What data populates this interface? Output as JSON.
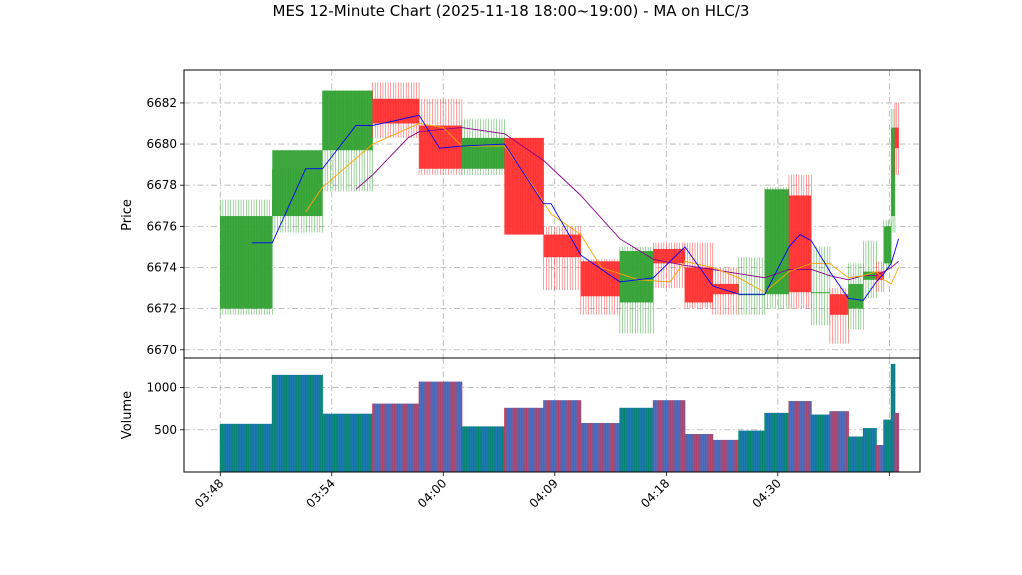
{
  "chart_data": {
    "type": "ohlc_volume",
    "title": "MES 12-Minute Chart (2025-11-18 18:00~19:00) - MA on HLC/3",
    "price_panel": {
      "ylabel": "Price",
      "ylim": [
        6669.6,
        6683.6
      ],
      "yticks": [
        6670,
        6672,
        6674,
        6676,
        6678,
        6680,
        6682
      ],
      "grid": true
    },
    "volume_panel": {
      "ylabel": "Volume",
      "ylim": [
        0,
        1350
      ],
      "yticks": [
        500,
        1000
      ],
      "yticklabels": [
        "500",
        "1000"
      ],
      "grid": true
    },
    "x_ticks": [
      {
        "t": 0,
        "label": "03:48"
      },
      {
        "t": 6,
        "label": "03:54"
      },
      {
        "t": 12,
        "label": "04:00"
      },
      {
        "t": 18,
        "label": "04:09"
      },
      {
        "t": 24,
        "label": "04:18"
      },
      {
        "t": 30,
        "label": "04:30"
      },
      {
        "t": 36,
        "label": ""
      }
    ],
    "xlim": [
      -1.95,
      37.65
    ],
    "colors": {
      "up": "#2ca02c",
      "down": "#ff2a2a",
      "vol_up_fill": "#1f77b4",
      "vol_up_edge": "#008a5e",
      "vol_down_fill": "#4a6fbf",
      "vol_down_edge": "#c23b5a",
      "ma_fast": "#0000ff",
      "ma_mid": "#ffa500",
      "ma_slow": "#8b008b"
    },
    "bars": [
      {
        "t0": 0.0,
        "t1": 2.8,
        "o": 6672.0,
        "h": 6677.3,
        "l": 6671.7,
        "c": 6676.5,
        "v": 570
      },
      {
        "t0": 2.8,
        "t1": 5.5,
        "o": 6676.5,
        "h": 6678.8,
        "l": 6675.7,
        "c": 6679.7,
        "v": 1150
      },
      {
        "t0": 5.5,
        "t1": 8.2,
        "o": 6679.7,
        "h": 6682.6,
        "l": 6677.7,
        "c": 6682.6,
        "v": 690
      },
      {
        "t0": 8.2,
        "t1": 10.7,
        "o": 6682.2,
        "h": 6683.0,
        "l": 6680.3,
        "c": 6681.0,
        "v": 810
      },
      {
        "t0": 10.7,
        "t1": 13.0,
        "o": 6680.9,
        "h": 6682.2,
        "l": 6678.5,
        "c": 6678.8,
        "v": 1070
      },
      {
        "t0": 13.0,
        "t1": 15.3,
        "o": 6678.8,
        "h": 6681.2,
        "l": 6678.5,
        "c": 6680.3,
        "v": 540
      },
      {
        "t0": 15.3,
        "t1": 17.4,
        "o": 6680.3,
        "h": 6680.3,
        "l": 6675.6,
        "c": 6675.6,
        "v": 760
      },
      {
        "t0": 17.4,
        "t1": 19.4,
        "o": 6675.6,
        "h": 6676.0,
        "l": 6672.9,
        "c": 6674.5,
        "v": 850
      },
      {
        "t0": 19.4,
        "t1": 21.5,
        "o": 6674.3,
        "h": 6674.4,
        "l": 6671.7,
        "c": 6672.6,
        "v": 580
      },
      {
        "t0": 21.5,
        "t1": 23.3,
        "o": 6672.3,
        "h": 6675.0,
        "l": 6670.8,
        "c": 6674.8,
        "v": 760
      },
      {
        "t0": 23.3,
        "t1": 25.0,
        "o": 6674.9,
        "h": 6675.2,
        "l": 6673.0,
        "c": 6674.2,
        "v": 850
      },
      {
        "t0": 25.0,
        "t1": 26.5,
        "o": 6674.0,
        "h": 6675.2,
        "l": 6672.0,
        "c": 6672.3,
        "v": 450
      },
      {
        "t0": 26.5,
        "t1": 27.9,
        "o": 6673.2,
        "h": 6674.0,
        "l": 6671.7,
        "c": 6672.7,
        "v": 380
      },
      {
        "t0": 27.9,
        "t1": 29.3,
        "o": 6672.7,
        "h": 6674.5,
        "l": 6671.7,
        "c": 6672.7,
        "v": 490
      },
      {
        "t0": 29.3,
        "t1": 30.6,
        "o": 6672.7,
        "h": 6677.9,
        "l": 6672.0,
        "c": 6677.8,
        "v": 700
      },
      {
        "t0": 30.6,
        "t1": 31.8,
        "o": 6677.5,
        "h": 6678.5,
        "l": 6672.0,
        "c": 6672.8,
        "v": 840
      },
      {
        "t0": 31.8,
        "t1": 32.8,
        "o": 6672.8,
        "h": 6675.0,
        "l": 6671.2,
        "c": 6672.8,
        "v": 680
      },
      {
        "t0": 32.8,
        "t1": 33.8,
        "o": 6672.7,
        "h": 6673.0,
        "l": 6670.3,
        "c": 6671.7,
        "v": 720
      },
      {
        "t0": 33.8,
        "t1": 34.6,
        "o": 6672.0,
        "h": 6674.2,
        "l": 6671.0,
        "c": 6673.2,
        "v": 420
      },
      {
        "t0": 34.6,
        "t1": 35.3,
        "o": 6673.4,
        "h": 6675.3,
        "l": 6672.5,
        "c": 6673.8,
        "v": 520
      },
      {
        "t0": 35.3,
        "t1": 35.7,
        "o": 6673.8,
        "h": 6674.3,
        "l": 6672.8,
        "c": 6673.4,
        "v": 320
      },
      {
        "t0": 35.7,
        "t1": 36.1,
        "o": 6674.2,
        "h": 6676.3,
        "l": 6673.9,
        "c": 6676.0,
        "v": 620
      },
      {
        "t0": 36.1,
        "t1": 36.3,
        "o": 6676.5,
        "h": 6681.7,
        "l": 6675.7,
        "c": 6680.8,
        "v": 1280
      },
      {
        "t0": 36.3,
        "t1": 36.5,
        "o": 6680.8,
        "h": 6682.0,
        "l": 6678.5,
        "c": 6679.8,
        "v": 700
      }
    ],
    "ma_fast": [
      [
        1.7,
        6675.2
      ],
      [
        2.8,
        6675.2
      ],
      [
        4.6,
        6678.8
      ],
      [
        5.5,
        6678.8
      ],
      [
        7.3,
        6680.9
      ],
      [
        8.2,
        6680.9
      ],
      [
        10.7,
        6681.4
      ],
      [
        11.8,
        6679.8
      ],
      [
        13.0,
        6679.9
      ],
      [
        15.3,
        6680.0
      ],
      [
        17.4,
        6677.1
      ],
      [
        17.8,
        6677.1
      ],
      [
        19.4,
        6674.6
      ],
      [
        21.5,
        6673.3
      ],
      [
        23.3,
        6673.5
      ],
      [
        25.0,
        6675.0
      ],
      [
        26.5,
        6673.1
      ],
      [
        27.9,
        6672.7
      ],
      [
        29.3,
        6672.7
      ],
      [
        30.6,
        6675.0
      ],
      [
        31.2,
        6675.6
      ],
      [
        31.8,
        6675.3
      ],
      [
        32.8,
        6673.8
      ],
      [
        33.8,
        6672.5
      ],
      [
        34.6,
        6672.4
      ],
      [
        35.3,
        6673.3
      ],
      [
        35.7,
        6673.7
      ],
      [
        36.1,
        6674.2
      ],
      [
        36.5,
        6675.4
      ]
    ],
    "ma_mid": [
      [
        4.6,
        6676.7
      ],
      [
        5.5,
        6677.9
      ],
      [
        7.3,
        6679.3
      ],
      [
        8.2,
        6680.0
      ],
      [
        10.7,
        6681.0
      ],
      [
        12.0,
        6680.8
      ],
      [
        13.0,
        6679.9
      ],
      [
        15.3,
        6679.9
      ],
      [
        16.8,
        6678.0
      ],
      [
        17.8,
        6676.6
      ],
      [
        19.4,
        6675.6
      ],
      [
        20.5,
        6674.0
      ],
      [
        22.5,
        6673.4
      ],
      [
        24.2,
        6673.3
      ],
      [
        25.0,
        6674.3
      ],
      [
        26.5,
        6674.0
      ],
      [
        27.9,
        6673.5
      ],
      [
        29.3,
        6672.8
      ],
      [
        30.6,
        6673.8
      ],
      [
        31.8,
        6674.2
      ],
      [
        32.8,
        6674.2
      ],
      [
        33.8,
        6673.5
      ],
      [
        34.6,
        6673.6
      ],
      [
        35.3,
        6673.8
      ],
      [
        35.7,
        6673.4
      ],
      [
        36.1,
        6673.2
      ],
      [
        36.5,
        6674.0
      ]
    ],
    "ma_slow": [
      [
        7.3,
        6677.8
      ],
      [
        8.2,
        6678.5
      ],
      [
        10.1,
        6680.3
      ],
      [
        10.7,
        6680.6
      ],
      [
        13.0,
        6680.8
      ],
      [
        15.3,
        6680.5
      ],
      [
        17.4,
        6679.2
      ],
      [
        19.4,
        6677.5
      ],
      [
        21.5,
        6675.4
      ],
      [
        23.3,
        6674.4
      ],
      [
        25.0,
        6674.1
      ],
      [
        26.5,
        6673.9
      ],
      [
        27.9,
        6673.7
      ],
      [
        29.3,
        6673.5
      ],
      [
        30.6,
        6673.9
      ],
      [
        31.8,
        6673.9
      ],
      [
        32.8,
        6673.6
      ],
      [
        33.8,
        6673.4
      ],
      [
        34.6,
        6673.6
      ],
      [
        35.3,
        6673.6
      ],
      [
        35.7,
        6673.8
      ],
      [
        36.1,
        6674.0
      ],
      [
        36.5,
        6674.3
      ]
    ]
  }
}
